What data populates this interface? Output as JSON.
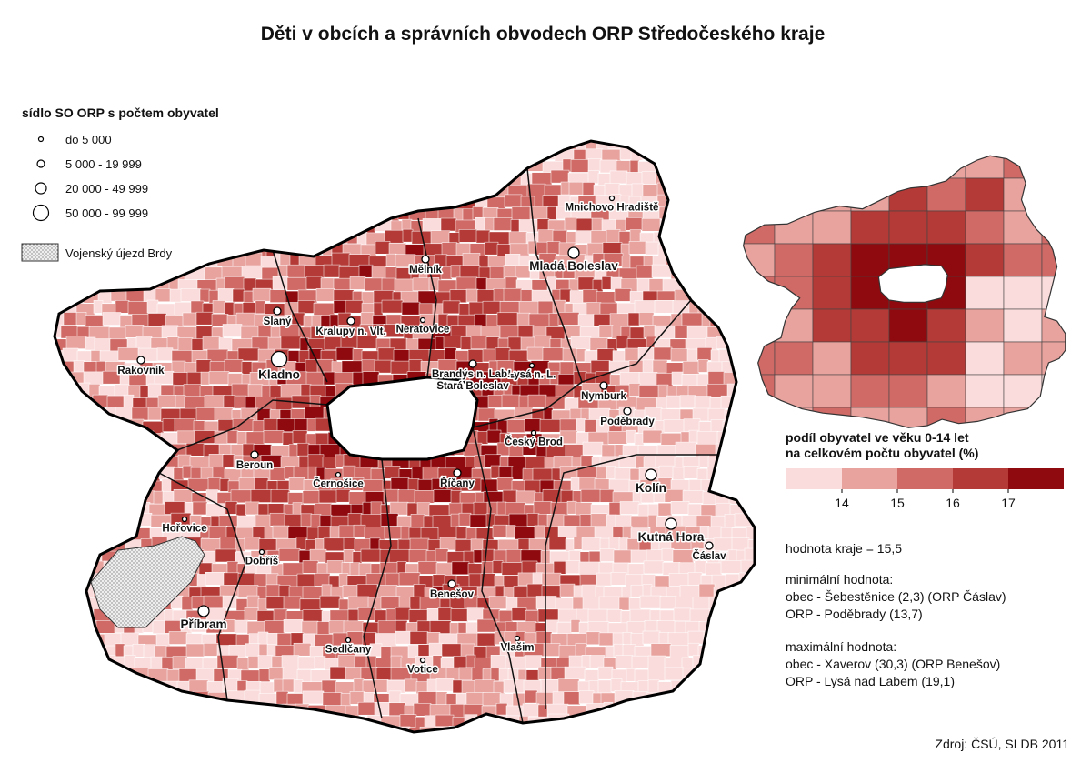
{
  "title": "Děti v obcích a správních obvodech ORP Středočeského kraje",
  "symbol_legend": {
    "title": "sídlo SO ORP s počtem obyvatel",
    "items": [
      "do 5 000",
      "5 000 - 19 999",
      "20 000 - 49 999",
      "50 000 - 99 999"
    ]
  },
  "military_area": "Vojenský újezd Brdy",
  "cities": [
    {
      "name": "Mnichovo Hradiště"
    },
    {
      "name": "Mladá Boleslav"
    },
    {
      "name": "Mělník"
    },
    {
      "name": "Neratovice"
    },
    {
      "name": "Slaný"
    },
    {
      "name": "Kralupy n. Vlt."
    },
    {
      "name": "Rakovník"
    },
    {
      "name": "Kladno"
    },
    {
      "name": "Lysá n. L."
    },
    {
      "name": [
        "Brandýs n. Lab.-",
        "Stará Boleslav"
      ]
    },
    {
      "name": "Nymburk"
    },
    {
      "name": "Poděbrady"
    },
    {
      "name": "Český Brod"
    },
    {
      "name": "Beroun"
    },
    {
      "name": "Černošice"
    },
    {
      "name": "Říčany"
    },
    {
      "name": "Kolín"
    },
    {
      "name": "Kutná Hora"
    },
    {
      "name": "Čáslav"
    },
    {
      "name": "Hořovice"
    },
    {
      "name": "Dobříš"
    },
    {
      "name": "Benešov"
    },
    {
      "name": "Příbram"
    },
    {
      "name": "Sedlčany"
    },
    {
      "name": "Votice"
    },
    {
      "name": "Vlašim"
    }
  ],
  "choropleth_legend": {
    "title": [
      "podíl obyvatel ve věku 0-14 let",
      "na celkovém počtu obyvatel (%)"
    ],
    "breaks": [
      14,
      15,
      16,
      17
    ],
    "colors": [
      "#fbdcdc",
      "#e9a39f",
      "#cf6a66",
      "#b33a36",
      "#8e0a0e"
    ]
  },
  "notes": [
    "hodnota kraje = 15,5",
    "minimální hodnota:",
    "obec - Šebestěnice (2,3) (ORP Čáslav)",
    "ORP - Poděbrady (13,7)",
    "maximální hodnota:",
    "obec - Xaverov (30,3) (ORP Benešov)",
    "ORP - Lysá nad Labem (19,1)"
  ],
  "source": "Zdroj: ČSÚ, SLDB 2011"
}
